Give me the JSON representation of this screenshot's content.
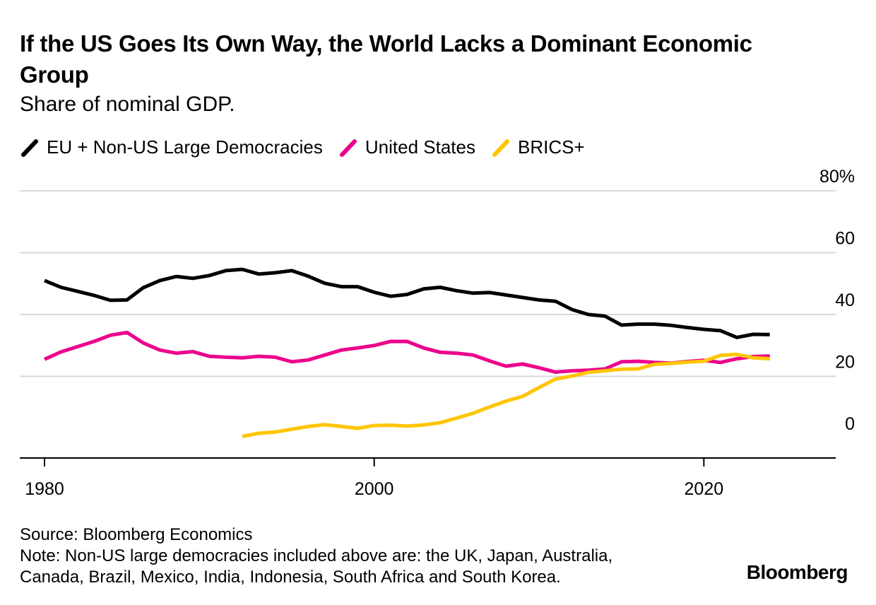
{
  "header": {
    "title": "If the US Goes Its Own Way, the World Lacks a Dominant Economic Group",
    "subtitle": "Share of nominal GDP."
  },
  "legend": [
    {
      "label": "EU + Non-US Large Democracies",
      "color": "#000000"
    },
    {
      "label": "United States",
      "color": "#ec008c"
    },
    {
      "label": "BRICS+",
      "color": "#ffc500"
    }
  ],
  "footer": {
    "source": "Source: Bloomberg Economics",
    "note_line1": "Note: Non-US large democracies included above are: the UK, Japan, Australia,",
    "note_line2": "Canada, Brazil, Mexico, India, Indonesia, South Africa and South Korea.",
    "brand": "Bloomberg"
  },
  "chart_data": {
    "type": "line",
    "title": "If the US Goes Its Own Way, the World Lacks a Dominant Economic Group",
    "subtitle": "Share of nominal GDP.",
    "xlim": [
      1978.5,
      2028
    ],
    "ylim": [
      -6,
      80
    ],
    "x_ticks": [
      1980,
      2000,
      2020
    ],
    "x_tick_labels": [
      "1980",
      "2000",
      "2020"
    ],
    "y_ticks": [
      0,
      20,
      40,
      60,
      80
    ],
    "y_tick_labels": [
      "0",
      "20",
      "40",
      "60",
      "80%"
    ],
    "grid": "horizontal",
    "legend_position": "top-left",
    "series": [
      {
        "name": "EU + Non-US Large Democracies",
        "color": "#000000",
        "x": [
          1980,
          1981,
          1982,
          1983,
          1984,
          1985,
          1986,
          1987,
          1988,
          1989,
          1990,
          1991,
          1992,
          1993,
          1994,
          1995,
          1996,
          1997,
          1998,
          1999,
          2000,
          2001,
          2002,
          2003,
          2004,
          2005,
          2006,
          2007,
          2008,
          2009,
          2010,
          2011,
          2012,
          2013,
          2014,
          2015,
          2016,
          2017,
          2018,
          2019,
          2020,
          2021,
          2022,
          2023,
          2024
        ],
        "values": [
          51.0,
          48.8,
          47.5,
          46.2,
          44.6,
          44.7,
          48.7,
          51.0,
          52.3,
          51.7,
          52.6,
          54.2,
          54.6,
          53.1,
          53.5,
          54.2,
          52.4,
          50.1,
          49.0,
          49.0,
          47.2,
          45.9,
          46.5,
          48.3,
          48.8,
          47.7,
          46.9,
          47.1,
          46.3,
          45.5,
          44.7,
          44.3,
          41.6,
          40.0,
          39.5,
          36.6,
          36.9,
          36.9,
          36.5,
          35.8,
          35.2,
          34.8,
          32.6,
          33.6,
          33.5
        ]
      },
      {
        "name": "United States",
        "color": "#ec008c",
        "x": [
          1980,
          1981,
          1982,
          1983,
          1984,
          1985,
          1986,
          1987,
          1988,
          1989,
          1990,
          1991,
          1992,
          1993,
          1994,
          1995,
          1996,
          1997,
          1998,
          1999,
          2000,
          2001,
          2002,
          2003,
          2004,
          2005,
          2006,
          2007,
          2008,
          2009,
          2010,
          2011,
          2012,
          2013,
          2014,
          2015,
          2016,
          2017,
          2018,
          2019,
          2020,
          2021,
          2022,
          2023,
          2024
        ],
        "values": [
          25.5,
          27.9,
          29.6,
          31.3,
          33.3,
          34.2,
          30.8,
          28.5,
          27.5,
          28.0,
          26.5,
          26.2,
          26.0,
          26.5,
          26.2,
          24.7,
          25.3,
          26.9,
          28.5,
          29.2,
          30.0,
          31.3,
          31.3,
          29.2,
          27.8,
          27.5,
          26.9,
          25.0,
          23.3,
          24.0,
          22.8,
          21.4,
          21.8,
          22.0,
          22.4,
          24.7,
          24.9,
          24.5,
          24.3,
          24.8,
          25.2,
          24.5,
          25.7,
          26.4,
          26.6
        ]
      },
      {
        "name": "BRICS+",
        "color": "#ffc500",
        "x": [
          1992,
          1993,
          1994,
          1995,
          1996,
          1997,
          1998,
          1999,
          2000,
          2001,
          2002,
          2003,
          2004,
          2005,
          2006,
          2007,
          2008,
          2009,
          2010,
          2011,
          2012,
          2013,
          2014,
          2015,
          2016,
          2017,
          2018,
          2019,
          2020,
          2021,
          2022,
          2023,
          2024
        ],
        "values": [
          0.6,
          1.6,
          2.0,
          2.9,
          3.8,
          4.4,
          3.8,
          3.2,
          4.1,
          4.2,
          3.9,
          4.3,
          5.0,
          6.5,
          8.1,
          10.1,
          12.0,
          13.5,
          16.4,
          19.1,
          20.1,
          21.3,
          21.8,
          22.3,
          22.4,
          23.9,
          24.2,
          24.6,
          24.9,
          26.8,
          27.1,
          26.0,
          25.7
        ]
      }
    ]
  }
}
